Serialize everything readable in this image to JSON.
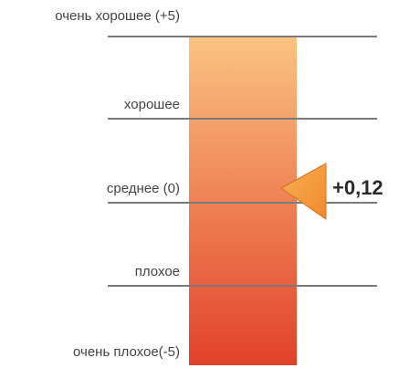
{
  "chart_data": {
    "type": "gauge",
    "value": 0.12,
    "value_label": "+0,12",
    "ylim": [
      -5,
      5
    ],
    "levels": [
      {
        "label": "очень хорошее (+5)",
        "value": 5
      },
      {
        "label": "хорошее",
        "value": 2.5
      },
      {
        "label": "среднее (0)",
        "value": 0
      },
      {
        "label": "плохое",
        "value": -2.5
      },
      {
        "label": "очень плохое(-5)",
        "value": -5
      }
    ],
    "colors": {
      "bar_top": "#fbc382",
      "bar_bottom": "#e2412a",
      "marker": "#f2892c",
      "lines": "#7a7a7a"
    }
  }
}
